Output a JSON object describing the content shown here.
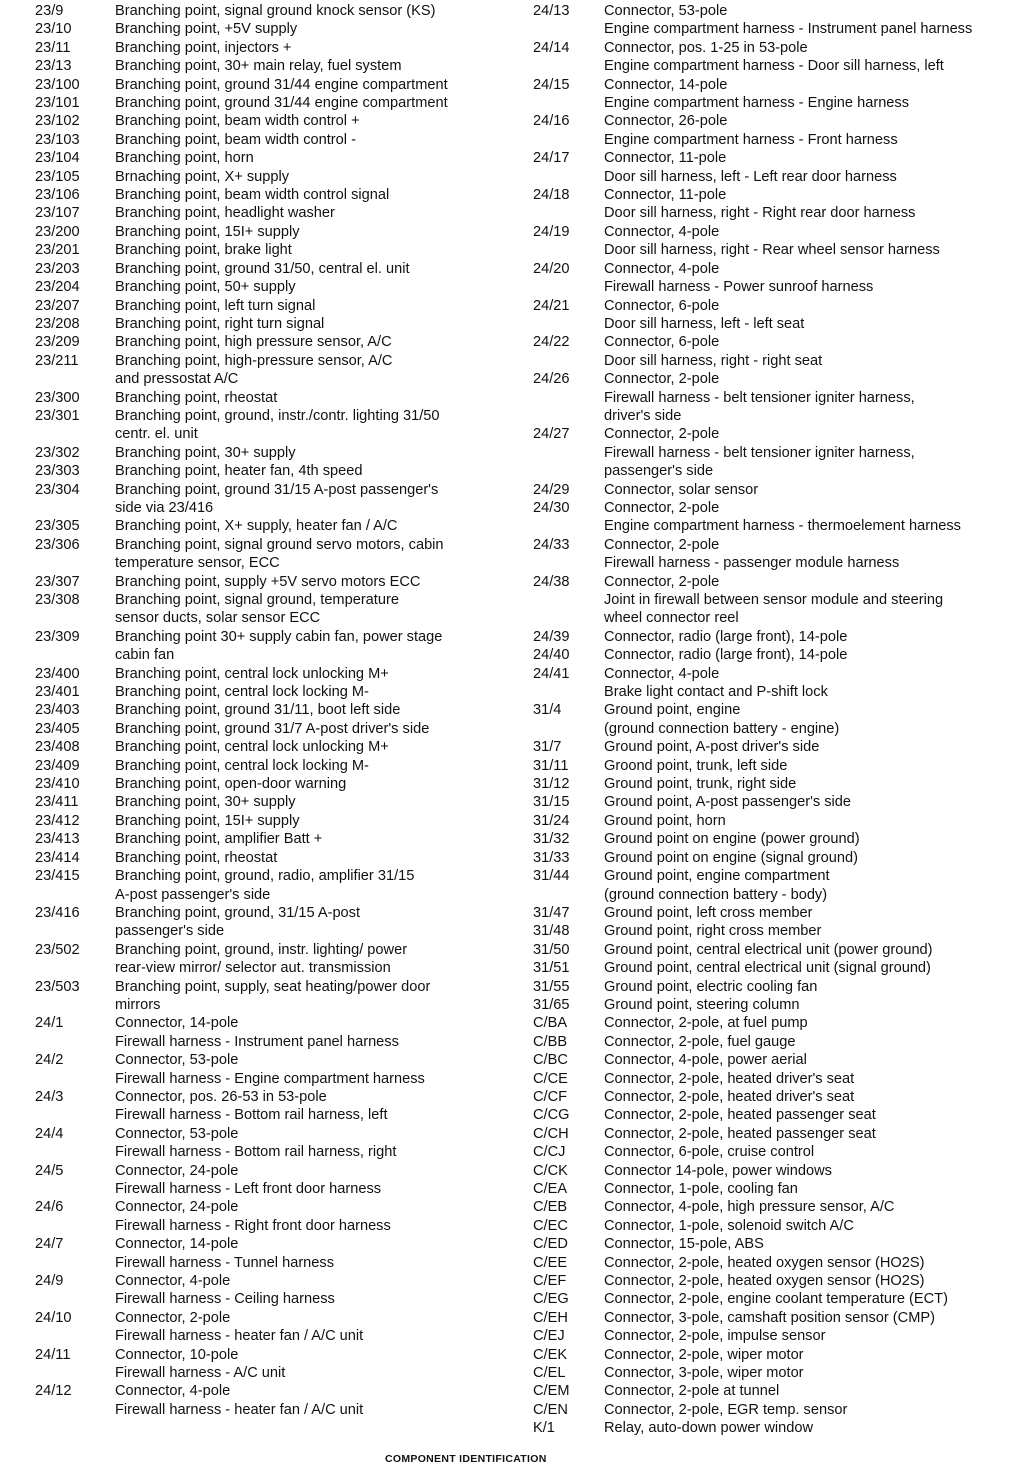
{
  "page": {
    "footer": "COMPONENT IDENTIFICATION"
  },
  "columns": {
    "left": [
      {
        "code": "23/9",
        "lines": [
          "Branching point, signal ground knock sensor (KS)"
        ]
      },
      {
        "code": "23/10",
        "lines": [
          "Branching point, +5V supply"
        ]
      },
      {
        "code": "23/11",
        "lines": [
          "Branching point, injectors +"
        ]
      },
      {
        "code": "23/13",
        "lines": [
          "Branching point, 30+ main relay, fuel system"
        ]
      },
      {
        "code": "23/100",
        "lines": [
          "Branching point, ground 31/44 engine compartment"
        ]
      },
      {
        "code": "23/101",
        "lines": [
          "Branching point, ground 31/44 engine compartment"
        ]
      },
      {
        "code": "23/102",
        "lines": [
          "Branching point, beam width control +"
        ]
      },
      {
        "code": "23/103",
        "lines": [
          "Branching point, beam width control -"
        ]
      },
      {
        "code": "23/104",
        "lines": [
          "Branching point, horn"
        ]
      },
      {
        "code": "23/105",
        "lines": [
          "Brnaching point, X+ supply"
        ]
      },
      {
        "code": "23/106",
        "lines": [
          "Branching point, beam width control signal"
        ]
      },
      {
        "code": "23/107",
        "lines": [
          "Branching point, headlight washer"
        ]
      },
      {
        "code": "23/200",
        "lines": [
          "Branching point, 15I+ supply"
        ]
      },
      {
        "code": "23/201",
        "lines": [
          "Branching point, brake light"
        ]
      },
      {
        "code": "23/203",
        "lines": [
          "Branching point, ground 31/50, central el. unit"
        ]
      },
      {
        "code": "23/204",
        "lines": [
          "Branching point, 50+ supply"
        ]
      },
      {
        "code": "23/207",
        "lines": [
          "Branching point, left turn signal"
        ]
      },
      {
        "code": "23/208",
        "lines": [
          "Branching point, right turn signal"
        ]
      },
      {
        "code": "23/209",
        "lines": [
          "Branching point, high pressure sensor, A/C"
        ]
      },
      {
        "code": "23/211",
        "lines": [
          "Branching point, high-pressure sensor, A/C",
          "and pressostat A/C"
        ]
      },
      {
        "code": "23/300",
        "lines": [
          "Branching point, rheostat"
        ]
      },
      {
        "code": "23/301",
        "lines": [
          "Branching point, ground, instr./contr. lighting 31/50",
          "centr. el. unit"
        ]
      },
      {
        "code": "23/302",
        "lines": [
          "Branching point, 30+ supply"
        ]
      },
      {
        "code": "23/303",
        "lines": [
          "Branching point, heater fan, 4th speed"
        ]
      },
      {
        "code": "23/304",
        "lines": [
          "Branching point, ground 31/15 A-post passenger's",
          "side via 23/416"
        ]
      },
      {
        "code": "23/305",
        "lines": [
          "Branching point, X+ supply, heater fan / A/C"
        ]
      },
      {
        "code": "23/306",
        "lines": [
          "Branching point, signal ground servo motors, cabin",
          "temperature sensor, ECC"
        ]
      },
      {
        "code": "23/307",
        "lines": [
          "Branching point, supply +5V servo motors ECC"
        ]
      },
      {
        "code": "23/308",
        "lines": [
          "Branching point, signal ground, temperature",
          "sensor ducts, solar sensor ECC"
        ]
      },
      {
        "code": "23/309",
        "lines": [
          "Branching point 30+ supply cabin fan, power stage",
          "cabin fan"
        ]
      },
      {
        "code": "23/400",
        "lines": [
          "Branching point, central lock unlocking M+"
        ]
      },
      {
        "code": "23/401",
        "lines": [
          "Branching point, central lock locking M-"
        ]
      },
      {
        "code": "23/403",
        "lines": [
          "Branching point, ground 31/11, boot left side"
        ]
      },
      {
        "code": "23/405",
        "lines": [
          "Branching point, ground 31/7 A-post driver's side"
        ]
      },
      {
        "code": "23/408",
        "lines": [
          "Branching point, central lock unlocking M+"
        ]
      },
      {
        "code": "23/409",
        "lines": [
          "Branching point, central lock locking M-"
        ]
      },
      {
        "code": "23/410",
        "lines": [
          "Branching point, open-door warning"
        ]
      },
      {
        "code": "23/411",
        "lines": [
          "Branching point, 30+ supply"
        ]
      },
      {
        "code": "23/412",
        "lines": [
          "Branching point, 15I+ supply"
        ]
      },
      {
        "code": "23/413",
        "lines": [
          "Branching point, amplifier Batt +"
        ]
      },
      {
        "code": "23/414",
        "lines": [
          "Branching point, rheostat"
        ]
      },
      {
        "code": "23/415",
        "lines": [
          "Branching point, ground, radio, amplifier 31/15",
          "A-post passenger's side"
        ]
      },
      {
        "code": "23/416",
        "lines": [
          "Branching point, ground, 31/15 A-post",
          "passenger's side"
        ]
      },
      {
        "code": "23/502",
        "lines": [
          "Branching point, ground, instr. lighting/ power",
          "rear-view mirror/ selector aut. transmission"
        ]
      },
      {
        "code": "23/503",
        "lines": [
          "Branching point, supply, seat heating/power door",
          "mirrors"
        ]
      },
      {
        "code": "24/1",
        "lines": [
          "Connector, 14-pole",
          "Firewall harness - Instrument panel harness"
        ]
      },
      {
        "code": "24/2",
        "lines": [
          "Connector, 53-pole",
          "Firewall harness - Engine compartment harness"
        ]
      },
      {
        "code": "24/3",
        "lines": [
          "Connector, pos. 26-53 in 53-pole",
          "Firewall harness - Bottom rail harness, left"
        ]
      },
      {
        "code": "24/4",
        "lines": [
          "Connector, 53-pole",
          "Firewall harness - Bottom rail harness, right"
        ]
      },
      {
        "code": "24/5",
        "lines": [
          "Connector, 24-pole",
          "Firewall harness - Left front door harness"
        ]
      },
      {
        "code": "24/6",
        "lines": [
          "Connector, 24-pole",
          "Firewall harness - Right front door harness"
        ]
      },
      {
        "code": "24/7",
        "lines": [
          "Connector, 14-pole",
          "Firewall harness - Tunnel harness"
        ]
      },
      {
        "code": "24/9",
        "lines": [
          "Connector, 4-pole",
          "Firewall harness - Ceiling harness"
        ]
      },
      {
        "code": "24/10",
        "lines": [
          "Connector, 2-pole",
          "Firewall harness - heater fan / A/C unit"
        ]
      },
      {
        "code": "24/11",
        "lines": [
          "Connector, 10-pole",
          "Firewall harness - A/C unit"
        ]
      },
      {
        "code": "24/12",
        "lines": [
          "Connector, 4-pole",
          "Firewall harness - heater fan / A/C unit"
        ]
      }
    ],
    "right": [
      {
        "code": "24/13",
        "lines": [
          "Connector, 53-pole",
          "Engine compartment harness - Instrument panel harness"
        ]
      },
      {
        "code": "24/14",
        "lines": [
          "Connector, pos. 1-25 in 53-pole",
          "Engine compartment harness - Door sill harness, left"
        ]
      },
      {
        "code": "24/15",
        "lines": [
          "Connector, 14-pole",
          "Engine compartment harness - Engine harness"
        ]
      },
      {
        "code": "24/16",
        "lines": [
          "Connector, 26-pole",
          "Engine compartment harness - Front harness"
        ]
      },
      {
        "code": "24/17",
        "lines": [
          "Connector, 11-pole",
          "Door sill harness, left - Left rear door harness"
        ]
      },
      {
        "code": "24/18",
        "lines": [
          "Connector, 11-pole",
          "Door sill harness, right - Right rear door harness"
        ]
      },
      {
        "code": "24/19",
        "lines": [
          "Connector, 4-pole",
          "Door sill harness, right - Rear wheel sensor harness"
        ]
      },
      {
        "code": "24/20",
        "lines": [
          "Connector, 4-pole",
          "Firewall harness - Power sunroof harness"
        ]
      },
      {
        "code": "24/21",
        "lines": [
          "Connector, 6-pole",
          "Door sill harness, left - left seat"
        ]
      },
      {
        "code": "24/22",
        "lines": [
          "Connector, 6-pole",
          "Door sill harness, right - right seat"
        ]
      },
      {
        "code": "24/26",
        "lines": [
          "Connector, 2-pole",
          "Firewall harness - belt tensioner igniter harness,",
          "driver's side"
        ]
      },
      {
        "code": "24/27",
        "lines": [
          "Connector, 2-pole",
          "Firewall harness - belt tensioner igniter harness,",
          "passenger's side"
        ]
      },
      {
        "code": "24/29",
        "lines": [
          "Connector, solar sensor"
        ]
      },
      {
        "code": "24/30",
        "lines": [
          "Connector, 2-pole",
          "Engine compartment harness - thermoelement harness"
        ]
      },
      {
        "code": "24/33",
        "lines": [
          "Connector, 2-pole",
          "Firewall harness - passenger module harness"
        ]
      },
      {
        "code": "24/38",
        "lines": [
          "Connector, 2-pole",
          "Joint in firewall between sensor module and steering",
          "wheel connector reel"
        ]
      },
      {
        "code": "24/39",
        "lines": [
          "Connector, radio (large front), 14-pole"
        ]
      },
      {
        "code": "24/40",
        "lines": [
          "Connector, radio (large front), 14-pole"
        ]
      },
      {
        "code": "24/41",
        "lines": [
          "Connector, 4-pole",
          "Brake light contact and P-shift lock"
        ]
      },
      {
        "code": "31/4",
        "lines": [
          "Ground point, engine",
          "(ground connection battery - engine)"
        ]
      },
      {
        "code": "31/7",
        "lines": [
          "Ground point, A-post driver's side"
        ]
      },
      {
        "code": "31/11",
        "lines": [
          "Groond point, trunk, left side"
        ]
      },
      {
        "code": "31/12",
        "lines": [
          "Ground point, trunk, right side"
        ]
      },
      {
        "code": "31/15",
        "lines": [
          "Ground point, A-post passenger's side"
        ]
      },
      {
        "code": "31/24",
        "lines": [
          "Ground point, horn"
        ]
      },
      {
        "code": "31/32",
        "lines": [
          "Ground point on engine (power ground)"
        ]
      },
      {
        "code": "31/33",
        "lines": [
          "Ground point on engine (signal ground)"
        ]
      },
      {
        "code": "31/44",
        "lines": [
          "Ground point, engine compartment",
          "(ground connection battery - body)"
        ]
      },
      {
        "code": "31/47",
        "lines": [
          "Ground point, left cross member"
        ]
      },
      {
        "code": "31/48",
        "lines": [
          "Ground point, right cross member"
        ]
      },
      {
        "code": "31/50",
        "lines": [
          "Ground point, central electrical unit (power ground)"
        ]
      },
      {
        "code": "31/51",
        "lines": [
          "Ground point, central electrical unit (signal ground)"
        ]
      },
      {
        "code": "31/55",
        "lines": [
          "Ground point, electric cooling fan"
        ]
      },
      {
        "code": "31/65",
        "lines": [
          "Ground point, steering column"
        ]
      },
      {
        "code": "C/BA",
        "lines": [
          "Connector, 2-pole, at fuel pump"
        ]
      },
      {
        "code": "C/BB",
        "lines": [
          "Connector, 2-pole, fuel gauge"
        ]
      },
      {
        "code": "C/BC",
        "lines": [
          "Connector, 4-pole, power aerial"
        ]
      },
      {
        "code": "C/CE",
        "lines": [
          "Connector, 2-pole, heated driver's seat"
        ]
      },
      {
        "code": "C/CF",
        "lines": [
          "Connector, 2-pole, heated driver's seat"
        ]
      },
      {
        "code": "C/CG",
        "lines": [
          "Connector, 2-pole, heated passenger seat"
        ]
      },
      {
        "code": "C/CH",
        "lines": [
          "Connector, 2-pole, heated passenger seat"
        ]
      },
      {
        "code": "C/CJ",
        "lines": [
          "Connector, 6-pole, cruise control"
        ]
      },
      {
        "code": "C/CK",
        "lines": [
          "Connector 14-pole, power windows"
        ]
      },
      {
        "code": "C/EA",
        "lines": [
          "Connector, 1-pole, cooling fan"
        ]
      },
      {
        "code": "C/EB",
        "lines": [
          "Connector, 4-pole, high pressure sensor, A/C"
        ]
      },
      {
        "code": "C/EC",
        "lines": [
          "Connector, 1-pole, solenoid switch A/C"
        ]
      },
      {
        "code": "C/ED",
        "lines": [
          "Connector, 15-pole, ABS"
        ]
      },
      {
        "code": "C/EE",
        "lines": [
          "Connector, 2-pole, heated oxygen sensor (HO2S)"
        ]
      },
      {
        "code": "C/EF",
        "lines": [
          "Connector, 2-pole, heated oxygen sensor (HO2S)"
        ]
      },
      {
        "code": "C/EG",
        "lines": [
          "Connector, 2-pole, engine coolant temperature (ECT)"
        ]
      },
      {
        "code": "C/EH",
        "lines": [
          "Connector, 3-pole, camshaft position sensor (CMP)"
        ]
      },
      {
        "code": "C/EJ",
        "lines": [
          "Connector, 2-pole, impulse sensor"
        ]
      },
      {
        "code": "C/EK",
        "lines": [
          "Connector, 2-pole, wiper motor"
        ]
      },
      {
        "code": "C/EL",
        "lines": [
          "Connector, 3-pole, wiper motor"
        ]
      },
      {
        "code": "C/EM",
        "lines": [
          "Connector, 2-pole at tunnel"
        ]
      },
      {
        "code": "C/EN",
        "lines": [
          "Connector, 2-pole, EGR temp. sensor"
        ]
      },
      {
        "code": "K/1",
        "lines": [
          "Relay, auto-down power window"
        ]
      }
    ]
  }
}
